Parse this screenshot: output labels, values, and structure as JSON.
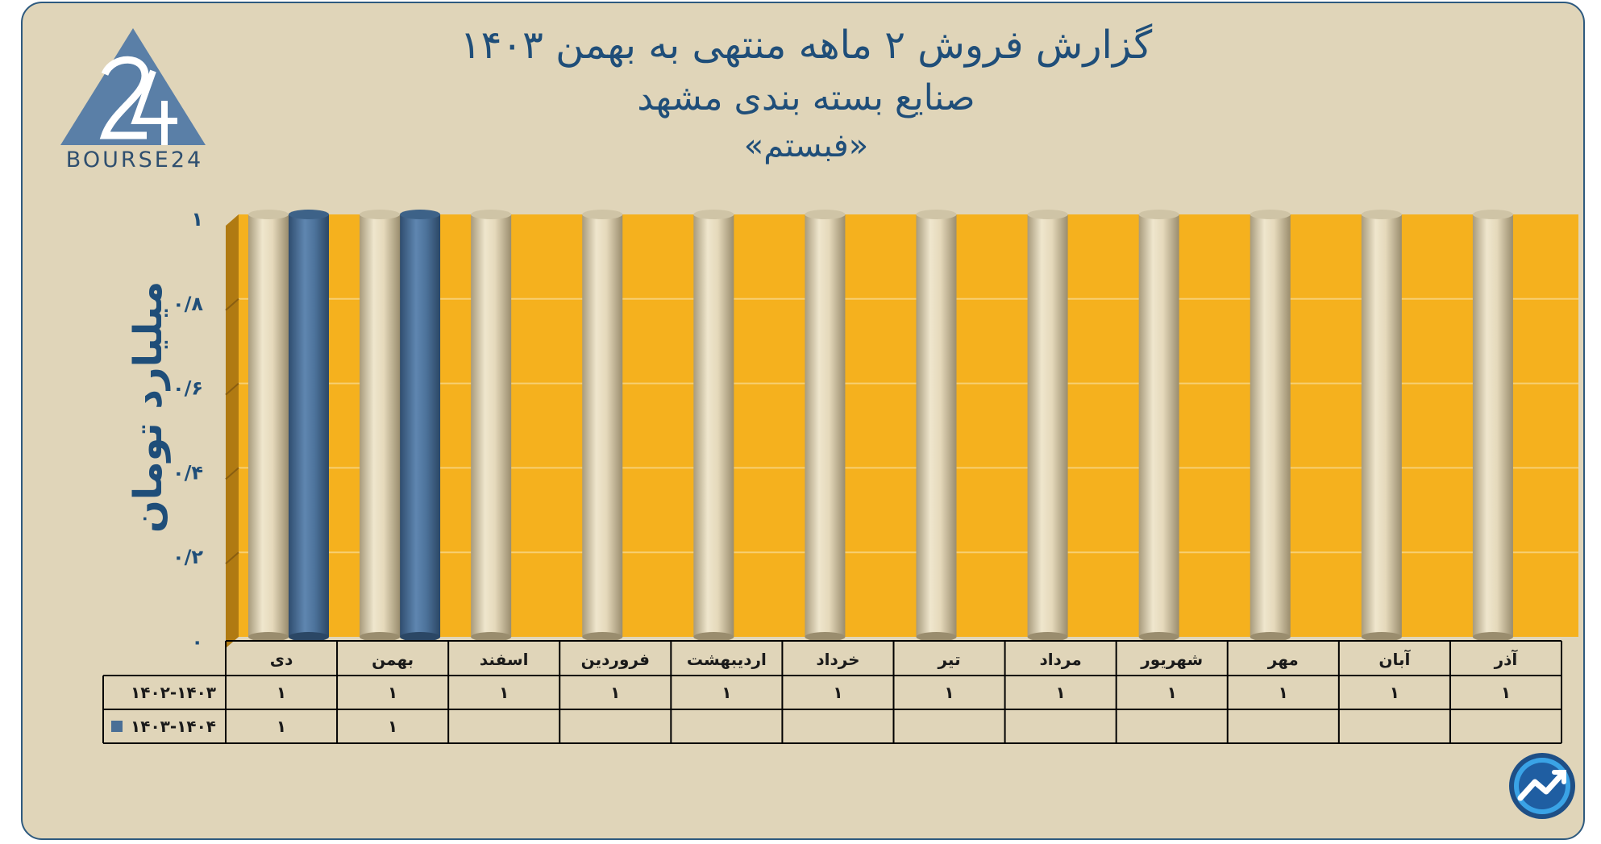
{
  "title": {
    "line1": "گزارش  فروش ۲ ماهه منتهی به بهمن ۱۴۰۳",
    "line2": "صنایع بسته بندی مشهد",
    "line3": "«فبستم»"
  },
  "logo": {
    "text": "BOURSE24",
    "icon": "bourse24-logo-icon"
  },
  "corner_icon": "trend-arrow-icon",
  "colors": {
    "background": "#e0d5b9",
    "plot": "#f5b11e",
    "series1": "#e7dcbf",
    "series2": "#4a6f96",
    "text": "#1f4e79"
  },
  "chart_data": {
    "type": "bar",
    "ylabel": "میلیارد تومان",
    "ylim": [
      0,
      1
    ],
    "yticks": [
      "0",
      "0/2",
      "0/4",
      "0/6",
      "0/8",
      "1"
    ],
    "ytick_labels": [
      "۰",
      "۰/۲",
      "۰/۴",
      "۰/۶",
      "۰/۸",
      "۱"
    ],
    "categories": [
      "دی",
      "بهمن",
      "اسفند",
      "فروردین",
      "اردیبهشت",
      "خرداد",
      "تیر",
      "مرداد",
      "شهریور",
      "مهر",
      "آبان",
      "آذر"
    ],
    "series": [
      {
        "name": "۱۴۰۲-۱۴۰۳",
        "values": [
          1,
          1,
          1,
          1,
          1,
          1,
          1,
          1,
          1,
          1,
          1,
          1
        ],
        "labels": [
          "۱",
          "۱",
          "۱",
          "۱",
          "۱",
          "۱",
          "۱",
          "۱",
          "۱",
          "۱",
          "۱",
          "۱"
        ]
      },
      {
        "name": "۱۴۰۳-۱۴۰۴",
        "values": [
          1,
          1,
          null,
          null,
          null,
          null,
          null,
          null,
          null,
          null,
          null,
          null
        ],
        "labels": [
          "۱",
          "۱",
          "",
          "",
          "",
          "",
          "",
          "",
          "",
          "",
          "",
          ""
        ]
      }
    ],
    "grid": true,
    "legend": "data-table"
  }
}
